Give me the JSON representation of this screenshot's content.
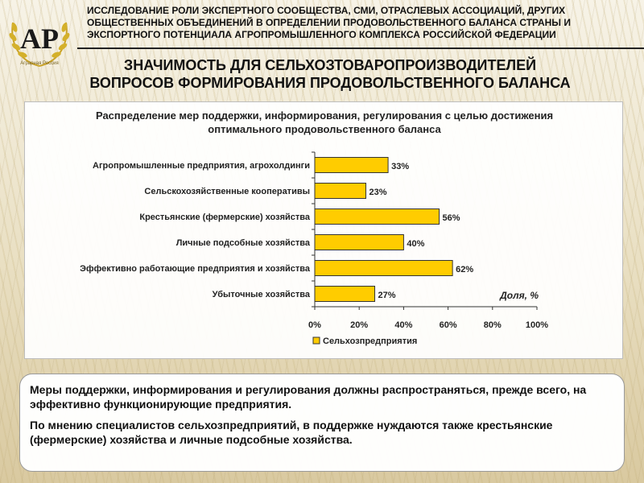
{
  "header": {
    "line1": "ИССЛЕДОВАНИЕ РОЛИ ЭКСПЕРТНОГО СООБЩЕСТВА, СМИ, ОТРАСЛЕВЫХ АССОЦИАЦИЙ, ДРУГИХ",
    "line2": "ОБЩЕСТВЕННЫХ ОБЪЕДИНЕНИЙ В ОПРЕДЕЛЕНИИ ПРОДОВОЛЬСТВЕННОГО БАЛАНСА СТРАНЫ И",
    "line3": "ЭКСПОРТНОГО ПОТЕНЦИАЛА АГРОПРОМЫШЛЕННОГО КОМПЛЕКСА РОССИЙСКОЙ ФЕДЕРАЦИИ"
  },
  "logo": {
    "monogram": "АР",
    "caption": "Аграрная Россия"
  },
  "title": {
    "line1": "ЗНАЧИМОСТЬ ДЛЯ СЕЛЬХОЗТОВАРОПРОИЗВОДИТЕЛЕЙ",
    "line2": "ВОПРОСОВ ФОРМИРОВАНИЯ ПРОДОВОЛЬСТВЕННОГО БАЛАНСА"
  },
  "chart_data": {
    "type": "bar",
    "orientation": "horizontal",
    "title_line1": "Распределение мер поддержки, информирования, регулирования с целью достижения",
    "title_line2": "оптимального продовольственного баланса",
    "categories": [
      "Агропромышленные предприятия, агрохолдинги",
      "Сельскохозяйственные кооперативы",
      "Крестьянские (фермерские) хозяйства",
      "Личные подсобные хозяйства",
      "Эффективно работающие предприятия и хозяйства",
      "Убыточные хозяйства"
    ],
    "series": [
      {
        "name": "Сельхозпредприятия",
        "values": [
          33,
          23,
          56,
          40,
          62,
          27
        ]
      }
    ],
    "value_labels": [
      "33%",
      "23%",
      "56%",
      "40%",
      "62%",
      "27%"
    ],
    "x_ticks": [
      "0%",
      "20%",
      "40%",
      "60%",
      "80%",
      "100%"
    ],
    "xlim": [
      0,
      100
    ],
    "axis_note": "Доля, %",
    "legend_position": "bottom",
    "grid": false,
    "bar_color": "#ffcc00",
    "bar_border": "#333333"
  },
  "info": {
    "para1": "Меры поддержки, информирования и регулирования должны распространяться, прежде всего, на эффективно функционирующие предприятия.",
    "para2": "По мнению специалистов сельхозпредприятий, в поддержке нуждаются также крестьянские (фермерские) хозяйства и личные подсобные хозяйства."
  }
}
